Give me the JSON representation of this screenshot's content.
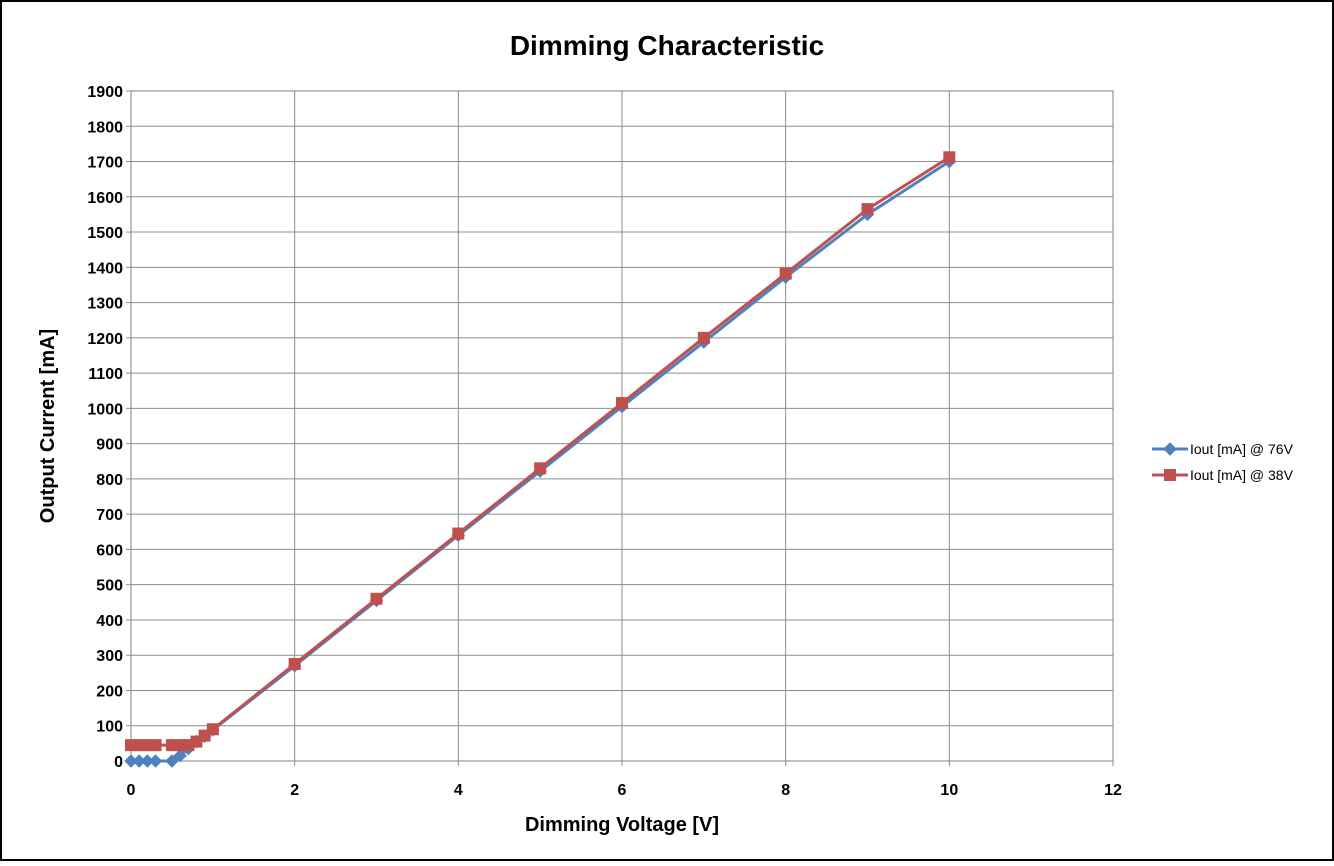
{
  "chart_data": {
    "type": "line",
    "title": "Dimming Characteristic",
    "xlabel": "Dimming Voltage [V]",
    "ylabel": "Output Current [mA]",
    "xlim": [
      0,
      12
    ],
    "ylim": [
      0,
      1900
    ],
    "xticks": [
      0,
      2,
      4,
      6,
      8,
      10,
      12
    ],
    "yticks": [
      0,
      100,
      200,
      300,
      400,
      500,
      600,
      700,
      800,
      900,
      1000,
      1100,
      1200,
      1300,
      1400,
      1500,
      1600,
      1700,
      1800,
      1900
    ],
    "grid": true,
    "legend_position": "right",
    "series": [
      {
        "name": "Iout [mA] @ 76V",
        "color": "#4F81BD",
        "marker": "diamond",
        "x": [
          0,
          0.1,
          0.2,
          0.3,
          0.5,
          0.6,
          0.7,
          0.8,
          0.9,
          1,
          2,
          3,
          4,
          5,
          6,
          7,
          8,
          9,
          10
        ],
        "y": [
          0,
          0,
          0,
          0,
          0,
          15,
          35,
          55,
          70,
          88,
          270,
          455,
          640,
          822,
          1005,
          1188,
          1372,
          1550,
          1700
        ]
      },
      {
        "name": "Iout [mA] @ 38V",
        "color": "#C0504D",
        "marker": "square",
        "x": [
          0,
          0.1,
          0.2,
          0.3,
          0.5,
          0.6,
          0.7,
          0.8,
          0.9,
          1,
          2,
          3,
          4,
          5,
          6,
          7,
          8,
          9,
          10
        ],
        "y": [
          45,
          45,
          45,
          45,
          45,
          45,
          45,
          55,
          72,
          90,
          275,
          460,
          645,
          830,
          1015,
          1200,
          1382,
          1565,
          1712
        ]
      }
    ]
  }
}
